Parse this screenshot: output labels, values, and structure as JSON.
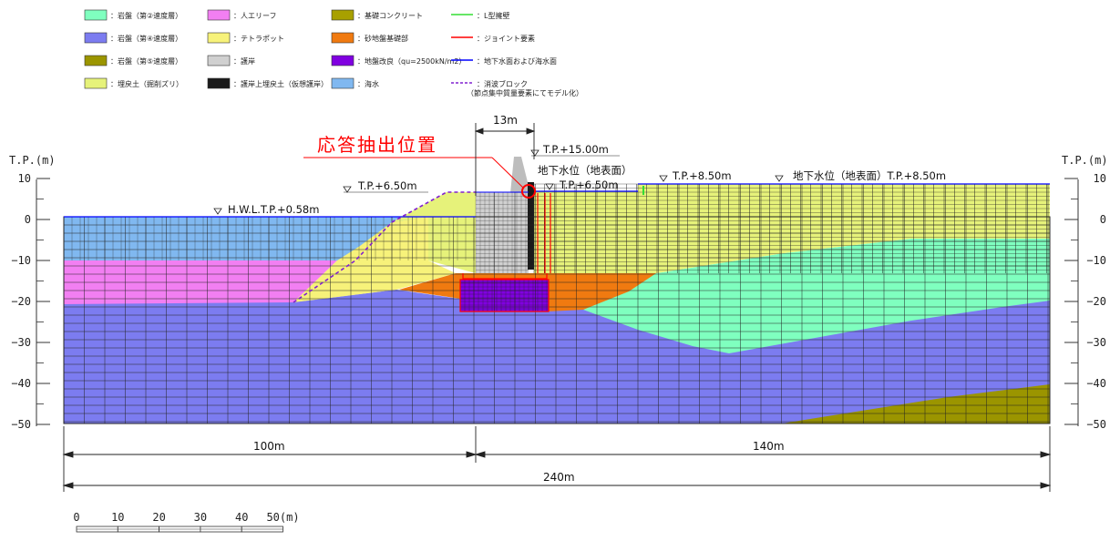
{
  "legend": [
    {
      "label": "：岩盤（第②速度層）",
      "color": "#7fffbf",
      "kind": "box"
    },
    {
      "label": "：岩盤（第④速度層）",
      "color": "#7c7cf0",
      "kind": "box"
    },
    {
      "label": "：岩盤（第⑤速度層）",
      "color": "#9b9500",
      "kind": "box"
    },
    {
      "label": "：埋戻土（掘削ズリ）",
      "color": "#e6f27a",
      "kind": "box"
    },
    {
      "label": "：人エリーフ",
      "color": "#f27ff2",
      "kind": "box"
    },
    {
      "label": "：テトラポット",
      "color": "#f7f27a",
      "kind": "box"
    },
    {
      "label": "：護岸",
      "color": "#d0d0d0",
      "kind": "box"
    },
    {
      "label": "：護岸上埋戻土（仮想護岸）",
      "color": "#1a1a1a",
      "kind": "box"
    },
    {
      "label": "：基礎コンクリート",
      "color": "#a8a000",
      "kind": "box"
    },
    {
      "label": "：砂地盤基礎部",
      "color": "#f07a10",
      "kind": "box"
    },
    {
      "label": "：地盤改良（qu=2500kN/m2）",
      "color": "#8000e0",
      "kind": "box"
    },
    {
      "label": "：海水",
      "color": "#80b8f0",
      "kind": "box"
    },
    {
      "label": "：L型擁壁",
      "color": "#33dd33",
      "kind": "line"
    },
    {
      "label": "：ジョイント要素",
      "color": "#ff0000",
      "kind": "line"
    },
    {
      "label": "：地下水面および海水面",
      "color": "#0000ff",
      "kind": "line"
    },
    {
      "label": "：消波ブロック",
      "color": "#8020d0",
      "kind": "dash"
    },
    {
      "label": "（節点集中質量要素にてモデル化）",
      "color": "",
      "kind": "note"
    }
  ],
  "axis": {
    "title_left": "T.P.(m)",
    "title_right": "T.P.(m)",
    "ticks": [
      "10",
      "0",
      "−10",
      "−20",
      "−30",
      "−40",
      "−50"
    ],
    "tick_values": [
      10,
      0,
      -10,
      -20,
      -30,
      -40,
      -50
    ]
  },
  "annotations": {
    "response_point": "応答抽出位置",
    "tp_15": "T.P.+15.00m",
    "gw_center": "地下水位（地表面）",
    "tp_650_left": "T.P.+6.50m",
    "tp_650_right": "T.P.+6.50m",
    "tp_850": "T.P.+8.50m",
    "gw_right": "地下水位（地表面）T.P.+8.50m",
    "hwl": "H.W.L.T.P.+0.58m"
  },
  "dimensions": {
    "top": "13m",
    "left": "100m",
    "right": "140m",
    "total": "240m"
  },
  "scale": {
    "labels": [
      "0",
      "10",
      "20",
      "30",
      "40",
      "50(m)"
    ]
  }
}
